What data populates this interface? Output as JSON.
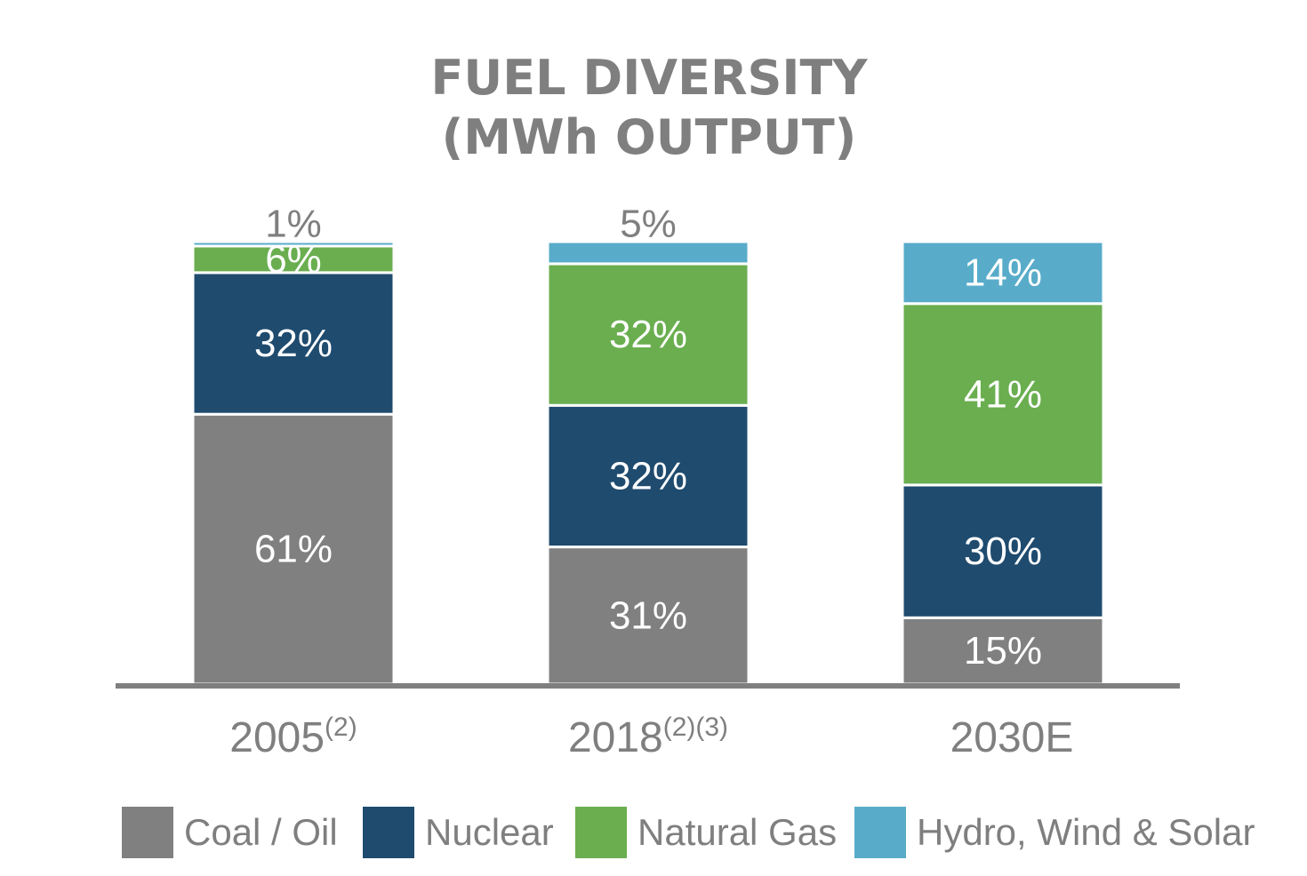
{
  "title_lines": [
    "FUEL DIVERSITY",
    "(MWh OUTPUT)"
  ],
  "colors": {
    "coal": "#808080",
    "nuclear": "#1f4b6e",
    "gas": "#6aae50",
    "renewables": "#58acc9",
    "axis": "#7f7f7f",
    "text_gray": "#7f7f7f",
    "label_white": "#ffffff"
  },
  "legend": [
    {
      "label": "Coal / Oil",
      "color": "#808080"
    },
    {
      "label": "Nuclear",
      "color": "#1f4b6e"
    },
    {
      "label": "Natural Gas",
      "color": "#6aae50"
    },
    {
      "label": "Hydro, Wind & Solar",
      "color": "#58acc9"
    }
  ],
  "chart_data": {
    "type": "bar",
    "stacked": true,
    "title": "FUEL DIVERSITY (MWh OUTPUT)",
    "categories": [
      "2005",
      "2018",
      "2030E"
    ],
    "category_superscripts": [
      "(2)",
      "(2)(3)",
      ""
    ],
    "unit": "%",
    "ylim": [
      0,
      100
    ],
    "grid": false,
    "legend_position": "bottom",
    "series": [
      {
        "name": "Coal / Oil",
        "values": [
          61,
          31,
          15
        ]
      },
      {
        "name": "Nuclear",
        "values": [
          32,
          32,
          30
        ]
      },
      {
        "name": "Natural Gas",
        "values": [
          6,
          32,
          41
        ]
      },
      {
        "name": "Hydro, Wind & Solar",
        "values": [
          1,
          5,
          14
        ]
      }
    ],
    "data_labels": [
      [
        "61%",
        "31%",
        "15%"
      ],
      [
        "32%",
        "32%",
        "30%"
      ],
      [
        "6%",
        "32%",
        "41%"
      ],
      [
        "1%",
        "5%",
        "14%"
      ]
    ]
  }
}
